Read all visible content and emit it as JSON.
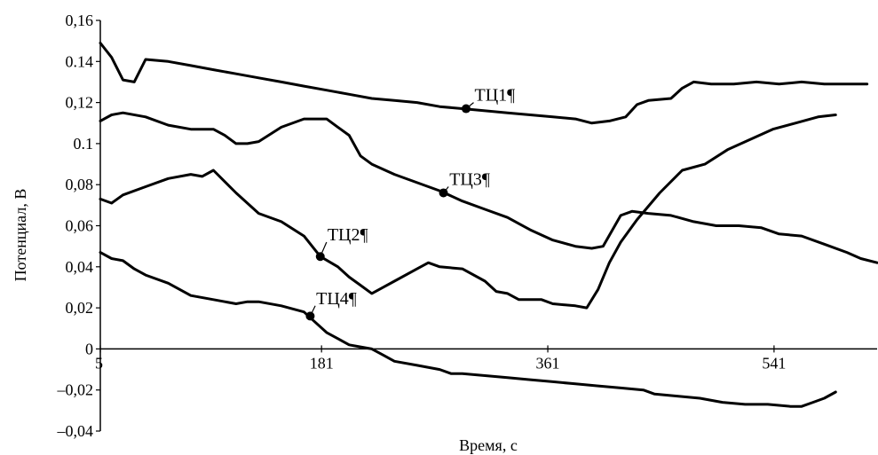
{
  "chart_data": {
    "type": "line",
    "title": "",
    "xlabel": "Время, с",
    "ylabel": "Потенциал, В",
    "xlim": [
      5,
      623
    ],
    "ylim": [
      -0.04,
      0.16
    ],
    "grid": false,
    "x_ticks": [
      {
        "value": 5,
        "label": "5"
      },
      {
        "value": 181,
        "label": "181"
      },
      {
        "value": 361,
        "label": "361"
      },
      {
        "value": 541,
        "label": "541"
      }
    ],
    "y_ticks": [
      {
        "value": 0.16,
        "label": "0,16"
      },
      {
        "value": 0.14,
        "label": "0.14"
      },
      {
        "value": 0.12,
        "label": "0,12"
      },
      {
        "value": 0.1,
        "label": "0.1"
      },
      {
        "value": 0.08,
        "label": "0,08"
      },
      {
        "value": 0.06,
        "label": "0,06"
      },
      {
        "value": 0.04,
        "label": "0,04"
      },
      {
        "value": 0.02,
        "label": "0,02"
      },
      {
        "value": 0,
        "label": "0"
      },
      {
        "value": -0.02,
        "label": "–0,02"
      },
      {
        "value": -0.04,
        "label": "–0,04"
      }
    ],
    "series": [
      {
        "name": "ТЦ1¶",
        "marker": [
          296,
          0.117
        ],
        "label_at": [
          302,
          0.12
        ],
        "points": [
          [
            5,
            0.149
          ],
          [
            14,
            0.142
          ],
          [
            23,
            0.131
          ],
          [
            32,
            0.13
          ],
          [
            41,
            0.141
          ],
          [
            59,
            0.14
          ],
          [
            77,
            0.138
          ],
          [
            95,
            0.136
          ],
          [
            113,
            0.134
          ],
          [
            131,
            0.132
          ],
          [
            149,
            0.13
          ],
          [
            167,
            0.128
          ],
          [
            185,
            0.126
          ],
          [
            203,
            0.124
          ],
          [
            221,
            0.122
          ],
          [
            239,
            0.121
          ],
          [
            257,
            0.12
          ],
          [
            275,
            0.118
          ],
          [
            293,
            0.117
          ],
          [
            311,
            0.116
          ],
          [
            329,
            0.115
          ],
          [
            347,
            0.114
          ],
          [
            365,
            0.113
          ],
          [
            383,
            0.112
          ],
          [
            396,
            0.11
          ],
          [
            410,
            0.111
          ],
          [
            423,
            0.113
          ],
          [
            432,
            0.119
          ],
          [
            441,
            0.121
          ],
          [
            459,
            0.122
          ],
          [
            468,
            0.127
          ],
          [
            477,
            0.13
          ],
          [
            491,
            0.129
          ],
          [
            509,
            0.129
          ],
          [
            527,
            0.13
          ],
          [
            545,
            0.129
          ],
          [
            563,
            0.13
          ],
          [
            581,
            0.129
          ],
          [
            599,
            0.129
          ],
          [
            615,
            0.129
          ]
        ]
      },
      {
        "name": "ТЦ3¶",
        "marker": [
          278,
          0.076
        ],
        "label_at": [
          282,
          0.079
        ],
        "points": [
          [
            5,
            0.111
          ],
          [
            14,
            0.114
          ],
          [
            23,
            0.115
          ],
          [
            41,
            0.113
          ],
          [
            59,
            0.109
          ],
          [
            77,
            0.107
          ],
          [
            95,
            0.107
          ],
          [
            104,
            0.104
          ],
          [
            113,
            0.1
          ],
          [
            122,
            0.1
          ],
          [
            131,
            0.101
          ],
          [
            149,
            0.108
          ],
          [
            167,
            0.112
          ],
          [
            185,
            0.112
          ],
          [
            194,
            0.108
          ],
          [
            203,
            0.104
          ],
          [
            212,
            0.094
          ],
          [
            221,
            0.09
          ],
          [
            239,
            0.085
          ],
          [
            257,
            0.081
          ],
          [
            275,
            0.077
          ],
          [
            293,
            0.072
          ],
          [
            311,
            0.068
          ],
          [
            329,
            0.064
          ],
          [
            347,
            0.058
          ],
          [
            365,
            0.053
          ],
          [
            383,
            0.05
          ],
          [
            396,
            0.049
          ],
          [
            405,
            0.05
          ],
          [
            419,
            0.065
          ],
          [
            428,
            0.067
          ],
          [
            441,
            0.066
          ],
          [
            459,
            0.065
          ],
          [
            477,
            0.062
          ],
          [
            495,
            0.06
          ],
          [
            513,
            0.06
          ],
          [
            531,
            0.059
          ],
          [
            545,
            0.056
          ],
          [
            563,
            0.055
          ],
          [
            581,
            0.051
          ],
          [
            599,
            0.047
          ],
          [
            610,
            0.044
          ],
          [
            623,
            0.042
          ]
        ]
      },
      {
        "name": "ТЦ2¶",
        "marker": [
          180,
          0.045
        ],
        "label_at": [
          185,
          0.052
        ],
        "points": [
          [
            5,
            0.073
          ],
          [
            14,
            0.071
          ],
          [
            23,
            0.075
          ],
          [
            41,
            0.079
          ],
          [
            59,
            0.083
          ],
          [
            77,
            0.085
          ],
          [
            86,
            0.084
          ],
          [
            95,
            0.087
          ],
          [
            113,
            0.076
          ],
          [
            131,
            0.066
          ],
          [
            149,
            0.062
          ],
          [
            167,
            0.055
          ],
          [
            180,
            0.045
          ],
          [
            194,
            0.04
          ],
          [
            203,
            0.035
          ],
          [
            212,
            0.031
          ],
          [
            221,
            0.027
          ],
          [
            230,
            0.03
          ],
          [
            239,
            0.033
          ],
          [
            257,
            0.039
          ],
          [
            266,
            0.042
          ],
          [
            275,
            0.04
          ],
          [
            293,
            0.039
          ],
          [
            311,
            0.033
          ],
          [
            320,
            0.028
          ],
          [
            329,
            0.027
          ],
          [
            338,
            0.024
          ],
          [
            356,
            0.024
          ],
          [
            365,
            0.022
          ],
          [
            383,
            0.021
          ],
          [
            392,
            0.02
          ],
          [
            401,
            0.029
          ],
          [
            410,
            0.042
          ],
          [
            419,
            0.052
          ],
          [
            432,
            0.063
          ],
          [
            450,
            0.076
          ],
          [
            468,
            0.087
          ],
          [
            486,
            0.09
          ],
          [
            504,
            0.097
          ],
          [
            522,
            0.102
          ],
          [
            540,
            0.107
          ],
          [
            558,
            0.11
          ],
          [
            576,
            0.113
          ],
          [
            590,
            0.114
          ]
        ]
      },
      {
        "name": "ТЦ4¶",
        "marker": [
          172,
          0.016
        ],
        "label_at": [
          176,
          0.021
        ],
        "points": [
          [
            5,
            0.047
          ],
          [
            14,
            0.044
          ],
          [
            23,
            0.043
          ],
          [
            32,
            0.039
          ],
          [
            41,
            0.036
          ],
          [
            59,
            0.032
          ],
          [
            77,
            0.026
          ],
          [
            95,
            0.024
          ],
          [
            113,
            0.022
          ],
          [
            122,
            0.023
          ],
          [
            131,
            0.023
          ],
          [
            149,
            0.021
          ],
          [
            167,
            0.018
          ],
          [
            176,
            0.013
          ],
          [
            185,
            0.008
          ],
          [
            194,
            0.005
          ],
          [
            203,
            0.002
          ],
          [
            212,
            0.001
          ],
          [
            221,
            0
          ],
          [
            230,
            -0.003
          ],
          [
            239,
            -0.006
          ],
          [
            257,
            -0.008
          ],
          [
            275,
            -0.01
          ],
          [
            284,
            -0.012
          ],
          [
            293,
            -0.012
          ],
          [
            311,
            -0.013
          ],
          [
            329,
            -0.014
          ],
          [
            347,
            -0.015
          ],
          [
            365,
            -0.016
          ],
          [
            383,
            -0.017
          ],
          [
            401,
            -0.018
          ],
          [
            419,
            -0.019
          ],
          [
            437,
            -0.02
          ],
          [
            446,
            -0.022
          ],
          [
            464,
            -0.023
          ],
          [
            482,
            -0.024
          ],
          [
            500,
            -0.026
          ],
          [
            518,
            -0.027
          ],
          [
            536,
            -0.027
          ],
          [
            554,
            -0.028
          ],
          [
            563,
            -0.028
          ],
          [
            572,
            -0.026
          ],
          [
            581,
            -0.024
          ],
          [
            590,
            -0.021
          ]
        ]
      }
    ]
  }
}
